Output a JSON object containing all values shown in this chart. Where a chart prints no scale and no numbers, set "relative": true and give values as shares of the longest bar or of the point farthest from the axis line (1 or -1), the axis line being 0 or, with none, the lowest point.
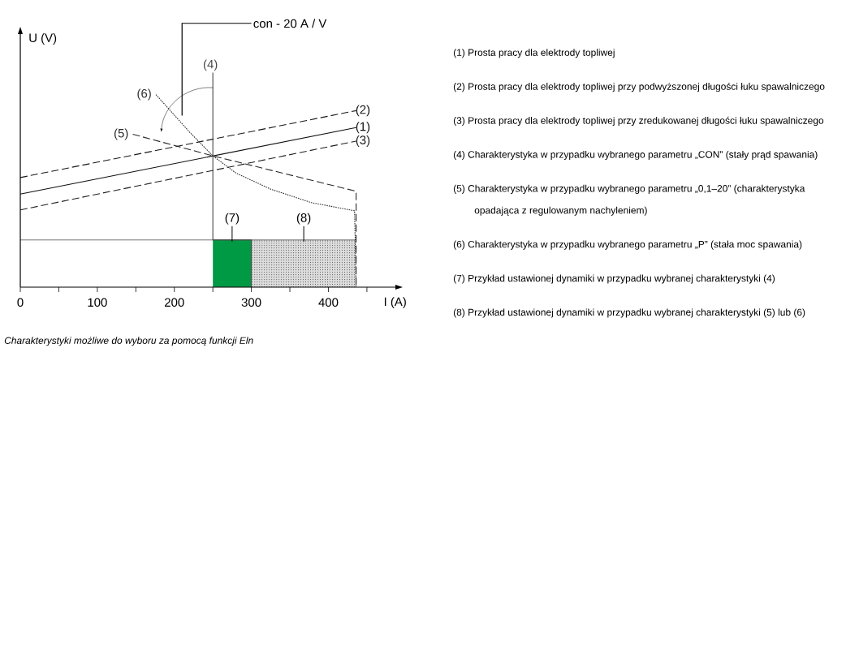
{
  "chart_data": {
    "type": "line",
    "relative": true,
    "xlabel": "I (A)",
    "ylabel": "U (V)",
    "xlim": [
      0,
      487
    ],
    "xticks": [
      0,
      {
        "value": 50,
        "label": null
      },
      100,
      {
        "value": 150,
        "label": null
      },
      200,
      {
        "value": 250,
        "label": null
      },
      300,
      {
        "value": 350,
        "label": null
      },
      400,
      {
        "value": 450,
        "label": null
      }
    ],
    "series": [
      {
        "name": "(7)",
        "type": "area",
        "color": "#009a44",
        "line_style": "solid",
        "x": [
          250,
          300
        ],
        "values": [
          0.22,
          0.22
        ]
      },
      {
        "name": "(8)",
        "type": "area",
        "color": "#dcdcdc",
        "line_style": "dotted",
        "x": [
          300,
          436
        ],
        "values": [
          0.22,
          0.22
        ]
      },
      {
        "type": "line",
        "color": "#3a3a3a",
        "line_style": "solid",
        "x": [
          0,
          436
        ],
        "values": [
          0.22,
          0.22
        ]
      },
      {
        "name": "(1)",
        "color": "#101010",
        "line_style": "solid",
        "x": [
          0,
          436
        ],
        "values": [
          0.434,
          0.744
        ]
      },
      {
        "name": "(2)",
        "color": "#181818",
        "line_style": "dashed",
        "x": [
          0,
          436
        ],
        "values": [
          0.511,
          0.823
        ]
      },
      {
        "name": "(3)",
        "color": "#202020",
        "line_style": "dashed",
        "x": [
          0,
          436
        ],
        "values": [
          0.36,
          0.681
        ]
      },
      {
        "name": "(4)",
        "color": "#484848",
        "line_style": "solid",
        "x": [
          250,
          250,
          300,
          300
        ],
        "values": [
          1.0,
          0.22,
          0.22,
          0
        ]
      },
      {
        "name": "(5)",
        "color": "#282828",
        "line_style": "dashed",
        "x": [
          146,
          250,
          436,
          436
        ],
        "values": [
          0.713,
          0.612,
          0.447,
          0
        ]
      },
      {
        "name": "(6)",
        "color": "#303030",
        "line_style": "dotted",
        "x": [
          176,
          220,
          250,
          280,
          325,
          378,
          434,
          436
        ],
        "values": [
          0.898,
          0.722,
          0.612,
          0.532,
          0.457,
          0.394,
          0.356,
          0
        ]
      }
    ],
    "annotations": [
      "con - 20 A / V",
      "Charakterystyki możliwe do wyboru za pomocą funkcji Eln",
      "(1) Prosta pracy dla elektrody topliwej",
      "(2) Prosta pracy dla elektrody topliwej przy podwyższonej długości łuku spawalniczego",
      "(3) Prosta pracy dla elektrody topliwej przy zredukowanej długości łuku spawalniczego",
      "(4) Charakterystyka w przypadku wybranego parametru „CON” (stały prąd spawania)",
      "(5) Charakterystyka w przypadku wybranego parametru „0,1–20” (charakterystyka opadająca z regulowanym nachyleniem)",
      "(6) Charakterystyka w przypadku wybranego parametru „P” (stała moc spawania)",
      "(7) Przykład ustawionej dynamiki w przypadku wybranej charakterystyki (4)",
      "(8) Przykład ustawionej dynamiki w przypadku wybranej charakterystyki (5) lub (6)"
    ]
  }
}
